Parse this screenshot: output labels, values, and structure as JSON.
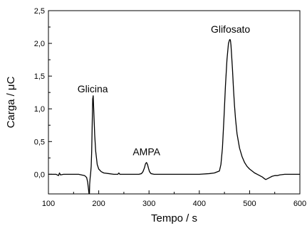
{
  "chart_data": {
    "type": "line",
    "xlabel": "Tempo / s",
    "ylabel": "Carga / μC",
    "xlim": [
      100,
      600
    ],
    "ylim": [
      -0.3,
      2.5
    ],
    "x_ticks": [
      100,
      200,
      300,
      400,
      500,
      600
    ],
    "x_tick_labels": [
      "100",
      "200",
      "300",
      "400",
      "500",
      "600"
    ],
    "y_ticks": [
      0.0,
      0.5,
      1.0,
      1.5,
      2.0,
      2.5
    ],
    "y_tick_labels": [
      "0,0",
      "0,5",
      "1,0",
      "1,5",
      "2,0",
      "2,5"
    ],
    "grid": false,
    "line_color": "#000000",
    "annotations": [
      {
        "text": "Glicina",
        "x": 188,
        "y": 1.21
      },
      {
        "text": "AMPA",
        "x": 295,
        "y": 0.25
      },
      {
        "text": "Glifosato",
        "x": 462,
        "y": 2.12
      }
    ],
    "series": [
      {
        "x": [
          100,
          115,
          120,
          122,
          124,
          130,
          145,
          160,
          172,
          176,
          178,
          180,
          181,
          181.5,
          182,
          183,
          184,
          185,
          186,
          187,
          188,
          189,
          190,
          192,
          194,
          197,
          200,
          205,
          210,
          220,
          230,
          238,
          240,
          242,
          250,
          260,
          270,
          280,
          285,
          288,
          291,
          293,
          295,
          297,
          299,
          301,
          304,
          310,
          320,
          340,
          360,
          380,
          400,
          420,
          430,
          440,
          443,
          446,
          449,
          452,
          455,
          458,
          460,
          461,
          462,
          463,
          464,
          466,
          468,
          470,
          472,
          475,
          480,
          485,
          490,
          495,
          500,
          505,
          510,
          515,
          520,
          525,
          530,
          532,
          535,
          540,
          545,
          550,
          555,
          560,
          570,
          580,
          590,
          600
        ],
        "y": [
          0.0,
          0.0,
          -0.02,
          0.02,
          -0.01,
          0.0,
          0.0,
          0.0,
          -0.02,
          -0.05,
          -0.12,
          -0.25,
          -0.32,
          -0.3,
          -0.15,
          -0.05,
          0.02,
          0.12,
          0.35,
          0.75,
          1.15,
          1.2,
          1.0,
          0.6,
          0.35,
          0.15,
          0.08,
          0.04,
          0.02,
          0.01,
          0.0,
          0.0,
          0.02,
          0.0,
          0.0,
          0.0,
          0.0,
          0.0,
          0.01,
          0.04,
          0.1,
          0.16,
          0.18,
          0.15,
          0.09,
          0.04,
          0.01,
          0.0,
          0.0,
          0.0,
          0.0,
          0.0,
          0.0,
          0.01,
          0.02,
          0.05,
          0.15,
          0.4,
          0.85,
          1.35,
          1.75,
          2.0,
          2.05,
          2.06,
          2.04,
          1.97,
          1.85,
          1.6,
          1.3,
          1.05,
          0.85,
          0.62,
          0.4,
          0.27,
          0.18,
          0.12,
          0.08,
          0.05,
          0.02,
          0.0,
          -0.02,
          -0.04,
          -0.07,
          -0.08,
          -0.07,
          -0.05,
          -0.03,
          -0.02,
          -0.02,
          -0.01,
          0.0,
          0.0,
          0.0,
          0.0
        ]
      }
    ]
  }
}
